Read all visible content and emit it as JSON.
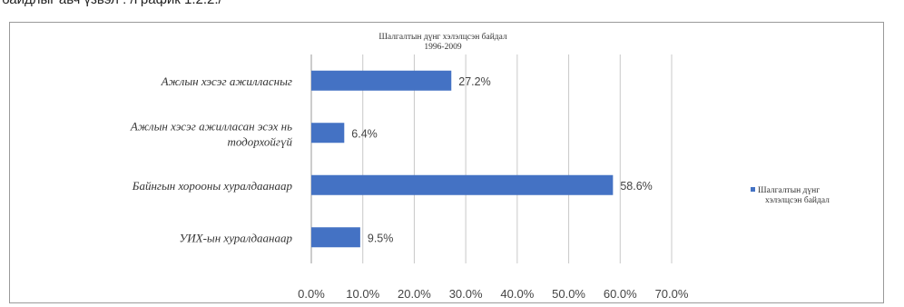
{
  "caption": "байдлыг авч үзвэл : /График 1.2.2./",
  "chart_data": {
    "type": "bar",
    "orientation": "horizontal",
    "title": [
      "Шалгалтын дүнг хэлэлцсэн байдал",
      "1996-2009"
    ],
    "categories": [
      "Ажлын хэсэг ажилласныг",
      "Ажлын хэсэг ажилласан эсэх нь тодорхойгүй",
      "Байнгын хорооны хуралдаанаар",
      "УИХ-ын хуралдаанаар"
    ],
    "series": [
      {
        "name": "Шалгалтын дүнг хэлэлцсэн байдал",
        "values": [
          27.2,
          6.4,
          58.6,
          9.5
        ],
        "value_labels": [
          "27.2%",
          "6.4%",
          "58.6%",
          "9.5%"
        ]
      }
    ],
    "xlim": [
      0,
      70
    ],
    "xticks": [
      0,
      10,
      20,
      30,
      40,
      50,
      60,
      70
    ],
    "xtick_labels": [
      "0.0%",
      "10.0%",
      "20.0%",
      "30.0%",
      "40.0%",
      "50.0%",
      "60.0%",
      "70.0%"
    ],
    "grid": true,
    "legend_position": "right",
    "bar_color": "#4472c4",
    "grid_color": "#c8c8c8"
  }
}
